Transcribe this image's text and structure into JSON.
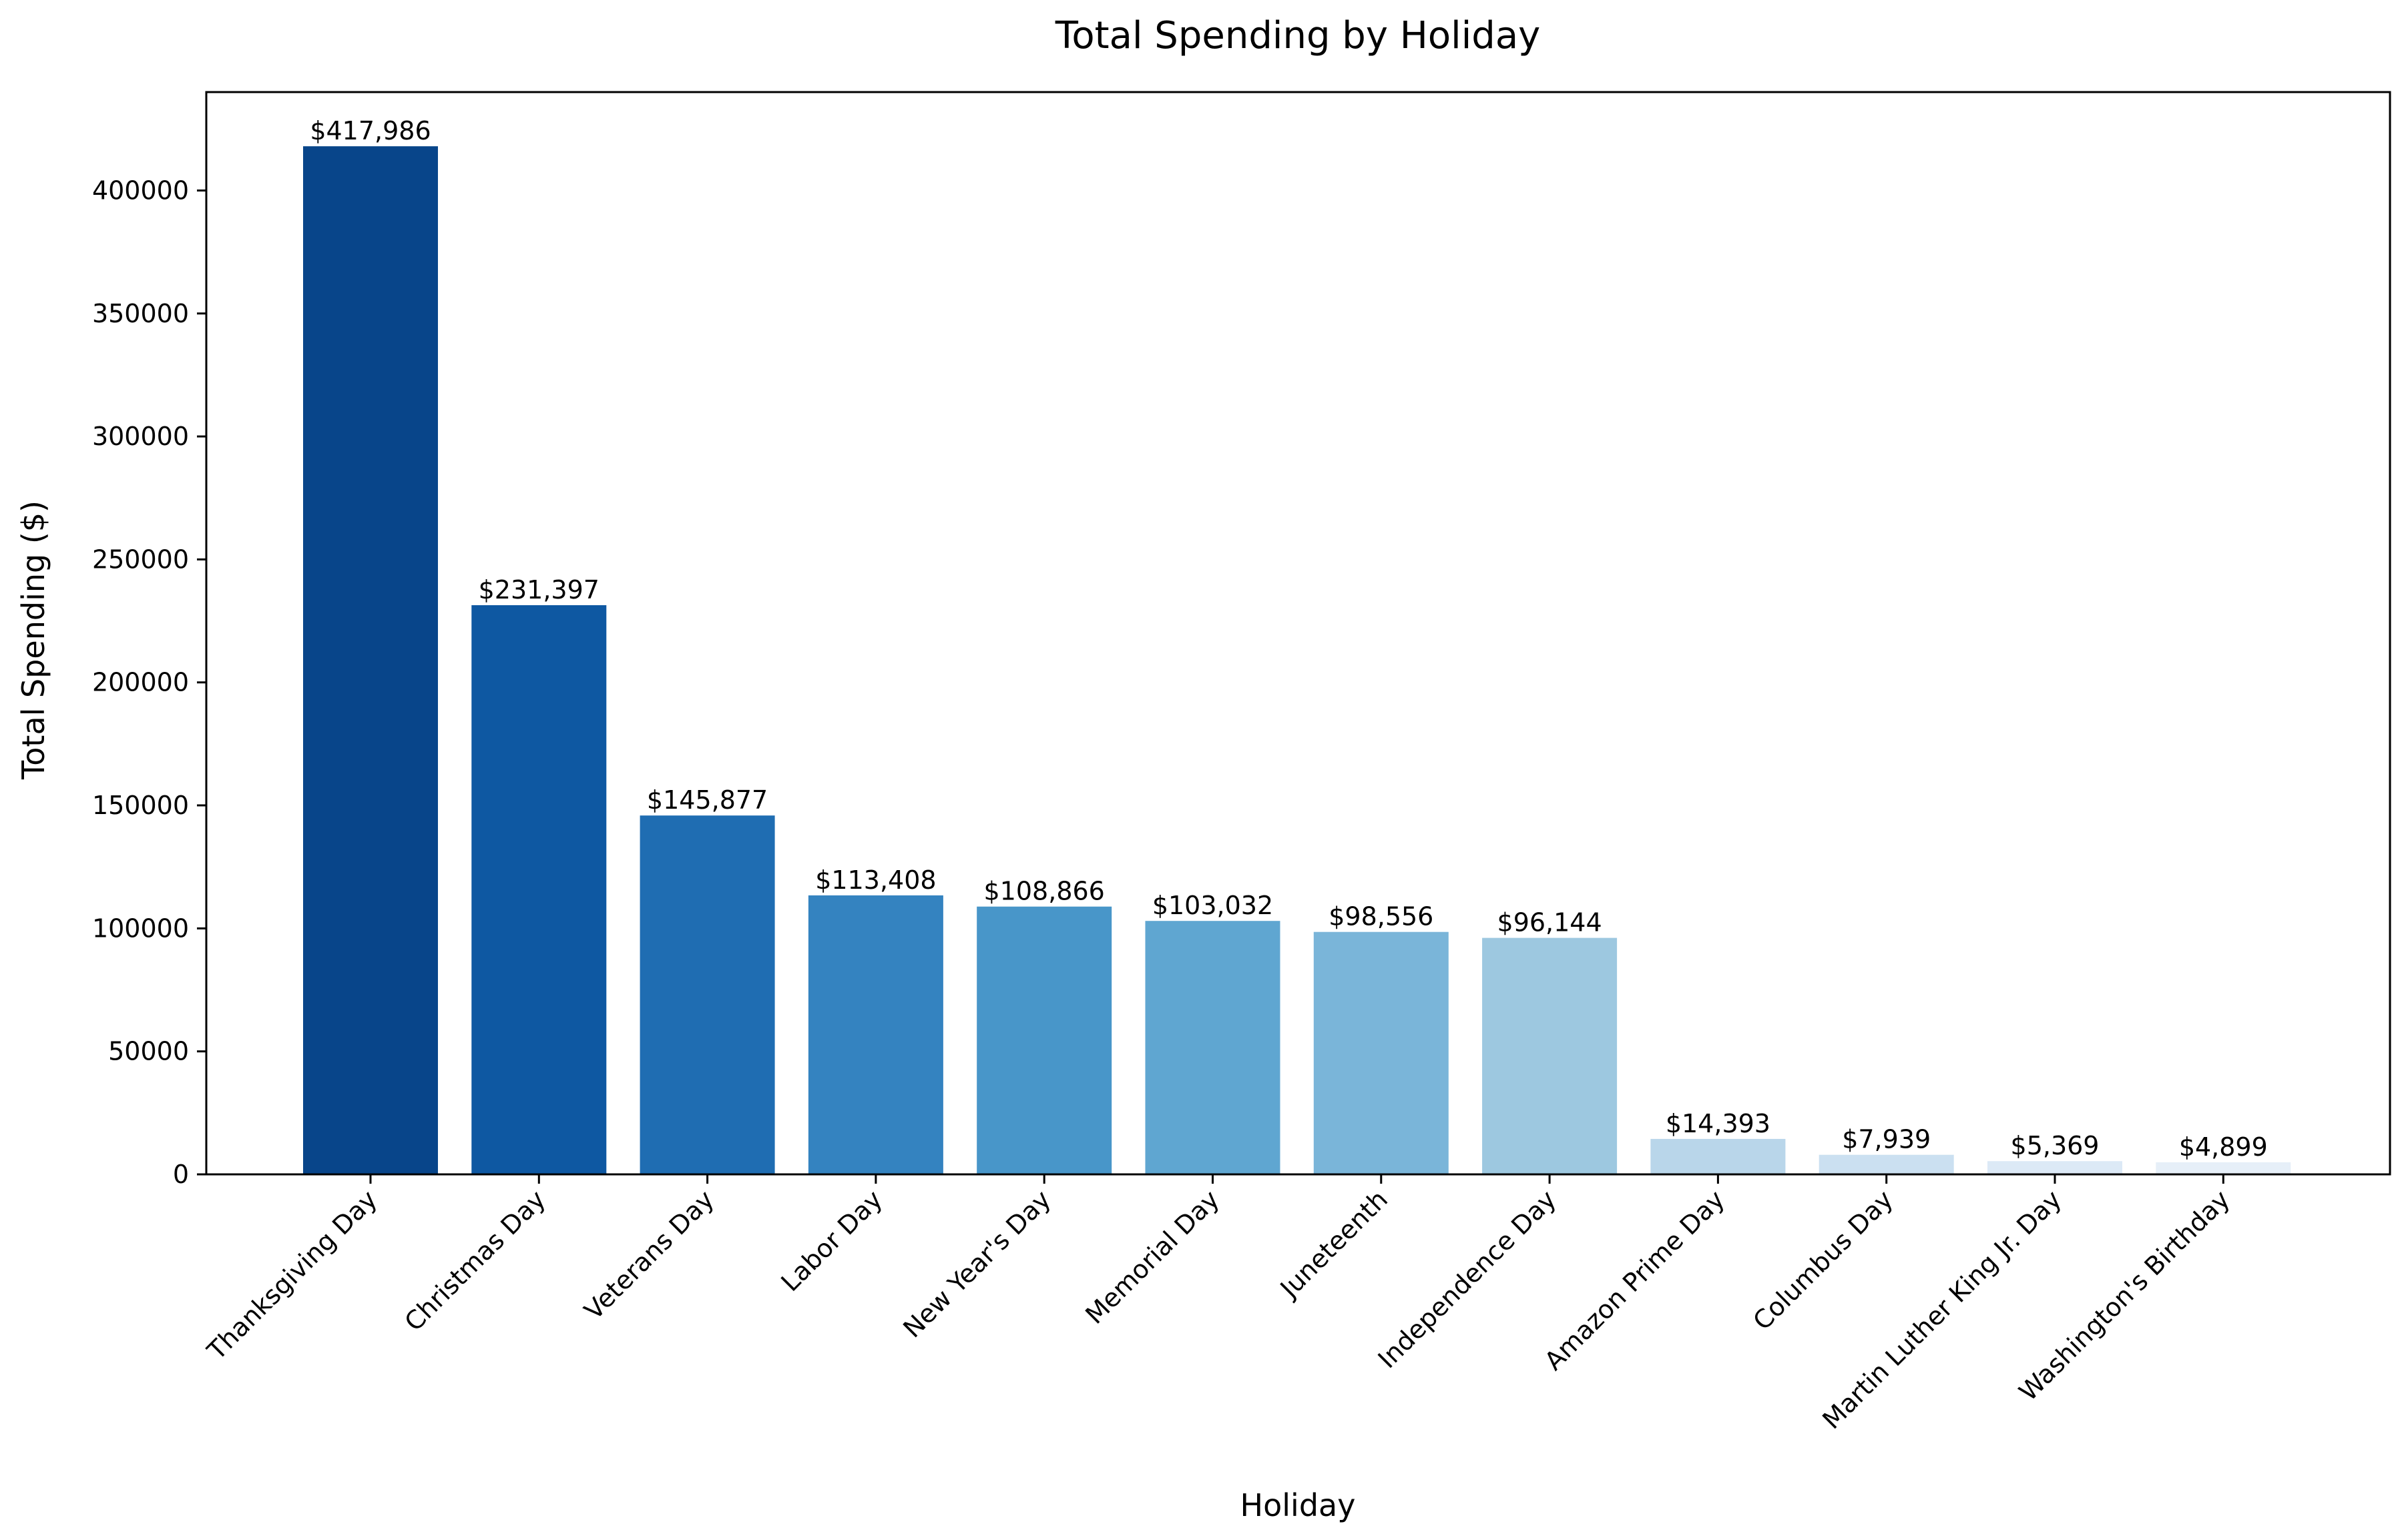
{
  "chart_data": {
    "type": "bar",
    "title": "Total Spending by Holiday",
    "xlabel": "Holiday",
    "ylabel": "Total Spending ($)",
    "ylim": [
      0,
      440000
    ],
    "yticks": [
      0,
      50000,
      100000,
      150000,
      200000,
      250000,
      300000,
      350000,
      400000
    ],
    "ytick_labels": [
      "0",
      "50000",
      "100000",
      "150000",
      "200000",
      "250000",
      "300000",
      "350000",
      "400000"
    ],
    "grid": false,
    "categories": [
      "Thanksgiving Day",
      "Christmas Day",
      "Veterans Day",
      "Labor Day",
      "New Year's Day",
      "Memorial Day",
      "Juneteenth",
      "Independence Day",
      "Amazon Prime Day",
      "Columbus Day",
      "Martin Luther King Jr. Day",
      "Washington's Birthday"
    ],
    "values": [
      417986,
      231397,
      145877,
      113408,
      108866,
      103032,
      98556,
      96144,
      14393,
      7939,
      5369,
      4899
    ],
    "value_labels": [
      "$417,986",
      "$231,397",
      "$145,877",
      "$113,408",
      "$108,866",
      "$103,032",
      "$98,556",
      "$96,144",
      "$14,393",
      "$7,939",
      "$5,369",
      "$4,899"
    ],
    "colors": [
      "#08458a",
      "#0e58a2",
      "#1f6db2",
      "#3483c0",
      "#4896c9",
      "#5fa6d1",
      "#7ab5d9",
      "#9dc8e0",
      "#b9d6ea",
      "#cbe0f1",
      "#dce9f6",
      "#e6eff8"
    ]
  }
}
